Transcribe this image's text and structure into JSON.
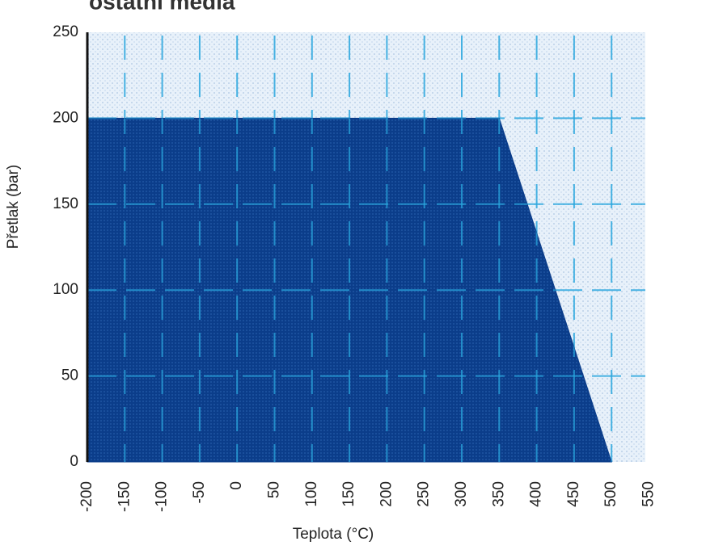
{
  "chart_data": {
    "type": "area",
    "title": "ostatní média",
    "xlabel": "Teplota (°C)",
    "ylabel": "Přetlak (bar)",
    "xlim": [
      -200,
      550
    ],
    "ylim": [
      0,
      250
    ],
    "x_ticks": [
      -200,
      -150,
      -100,
      -50,
      0,
      50,
      100,
      150,
      200,
      250,
      300,
      350,
      400,
      450,
      500,
      550
    ],
    "y_ticks": [
      0,
      50,
      100,
      150,
      200,
      250
    ],
    "grid": true,
    "series": [
      {
        "x": [
          -200,
          350,
          500
        ],
        "y": [
          200,
          200,
          0
        ]
      }
    ],
    "colors": {
      "area_fill": "#0b3d8a",
      "area_texture": "#1c58a8",
      "grid": "#2aa7de",
      "plot_background": "#e8f1fa",
      "plot_texture": "#c6d8ec",
      "axis": "#111111"
    }
  }
}
